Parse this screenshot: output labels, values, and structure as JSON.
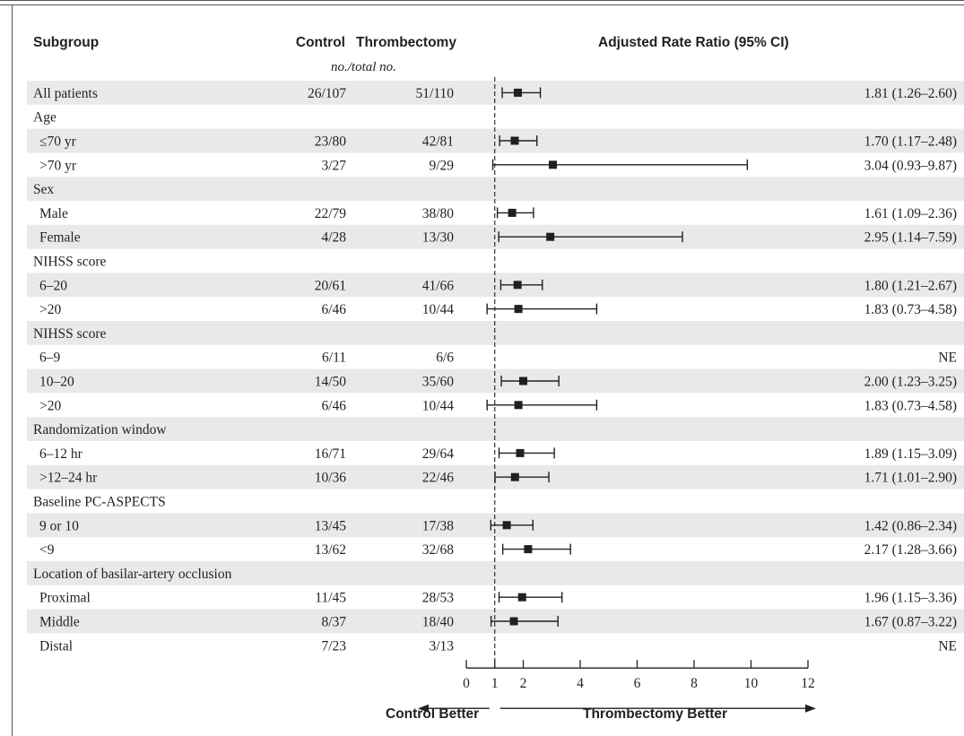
{
  "headers": {
    "subgroup": "Subgroup",
    "control": "Control",
    "thrombectomy": "Thrombectomy",
    "subheader": "no./total no.",
    "ratio": "Adjusted Rate Ratio (95% CI)"
  },
  "arrows": {
    "left": "Control Better",
    "right": "Thrombectomy Better"
  },
  "colors": {
    "band": "#e8e9eb",
    "ink": "#231f20"
  },
  "chart_data": {
    "type": "forest",
    "xlabel": "Adjusted Rate Ratio (95% CI)",
    "xlim": [
      0,
      12
    ],
    "ticks": [
      0,
      1,
      2,
      4,
      6,
      8,
      10,
      12
    ],
    "reference_line": 1,
    "rows": [
      {
        "label": "All patients",
        "indent": false,
        "header": false,
        "control": "26/107",
        "thrombectomy": "51/110",
        "est": 1.81,
        "lo": 1.26,
        "hi": 2.6,
        "text": "1.81 (1.26–2.60)"
      },
      {
        "label": "Age",
        "indent": false,
        "header": true
      },
      {
        "label": "≤70 yr",
        "indent": true,
        "header": false,
        "control": "23/80",
        "thrombectomy": "42/81",
        "est": 1.7,
        "lo": 1.17,
        "hi": 2.48,
        "text": "1.70 (1.17–2.48)"
      },
      {
        "label": ">70 yr",
        "indent": true,
        "header": false,
        "control": "3/27",
        "thrombectomy": "9/29",
        "est": 3.04,
        "lo": 0.93,
        "hi": 9.87,
        "text": "3.04 (0.93–9.87)"
      },
      {
        "label": "Sex",
        "indent": false,
        "header": true
      },
      {
        "label": "Male",
        "indent": true,
        "header": false,
        "control": "22/79",
        "thrombectomy": "38/80",
        "est": 1.61,
        "lo": 1.09,
        "hi": 2.36,
        "text": "1.61 (1.09–2.36)"
      },
      {
        "label": "Female",
        "indent": true,
        "header": false,
        "control": "4/28",
        "thrombectomy": "13/30",
        "est": 2.95,
        "lo": 1.14,
        "hi": 7.59,
        "text": "2.95 (1.14–7.59)"
      },
      {
        "label": "NIHSS score",
        "indent": false,
        "header": true
      },
      {
        "label": "6–20",
        "indent": true,
        "header": false,
        "control": "20/61",
        "thrombectomy": "41/66",
        "est": 1.8,
        "lo": 1.21,
        "hi": 2.67,
        "text": "1.80 (1.21–2.67)"
      },
      {
        "label": ">20",
        "indent": true,
        "header": false,
        "control": "6/46",
        "thrombectomy": "10/44",
        "est": 1.83,
        "lo": 0.73,
        "hi": 4.58,
        "text": "1.83 (0.73–4.58)"
      },
      {
        "label": "NIHSS score",
        "indent": false,
        "header": true
      },
      {
        "label": "6–9",
        "indent": true,
        "header": false,
        "control": "6/11",
        "thrombectomy": "6/6",
        "est": null,
        "lo": null,
        "hi": null,
        "text": "NE"
      },
      {
        "label": "10–20",
        "indent": true,
        "header": false,
        "control": "14/50",
        "thrombectomy": "35/60",
        "est": 2.0,
        "lo": 1.23,
        "hi": 3.25,
        "text": "2.00 (1.23–3.25)"
      },
      {
        "label": ">20",
        "indent": true,
        "header": false,
        "control": "6/46",
        "thrombectomy": "10/44",
        "est": 1.83,
        "lo": 0.73,
        "hi": 4.58,
        "text": "1.83 (0.73–4.58)"
      },
      {
        "label": "Randomization window",
        "indent": false,
        "header": true
      },
      {
        "label": "6–12 hr",
        "indent": true,
        "header": false,
        "control": "16/71",
        "thrombectomy": "29/64",
        "est": 1.89,
        "lo": 1.15,
        "hi": 3.09,
        "text": "1.89 (1.15–3.09)"
      },
      {
        "label": ">12–24 hr",
        "indent": true,
        "header": false,
        "control": "10/36",
        "thrombectomy": "22/46",
        "est": 1.71,
        "lo": 1.01,
        "hi": 2.9,
        "text": "1.71 (1.01–2.90)"
      },
      {
        "label": "Baseline PC-ASPECTS",
        "indent": false,
        "header": true
      },
      {
        "label": "9 or 10",
        "indent": true,
        "header": false,
        "control": "13/45",
        "thrombectomy": "17/38",
        "est": 1.42,
        "lo": 0.86,
        "hi": 2.34,
        "text": "1.42 (0.86–2.34)"
      },
      {
        "label": "<9",
        "indent": true,
        "header": false,
        "control": "13/62",
        "thrombectomy": "32/68",
        "est": 2.17,
        "lo": 1.28,
        "hi": 3.66,
        "text": "2.17 (1.28–3.66)"
      },
      {
        "label": "Location of basilar-artery occlusion",
        "indent": false,
        "header": true
      },
      {
        "label": "Proximal",
        "indent": true,
        "header": false,
        "control": "11/45",
        "thrombectomy": "28/53",
        "est": 1.96,
        "lo": 1.15,
        "hi": 3.36,
        "text": "1.96 (1.15–3.36)"
      },
      {
        "label": "Middle",
        "indent": true,
        "header": false,
        "control": "8/37",
        "thrombectomy": "18/40",
        "est": 1.67,
        "lo": 0.87,
        "hi": 3.22,
        "text": "1.67 (0.87–3.22)"
      },
      {
        "label": "Distal",
        "indent": true,
        "header": false,
        "control": "7/23",
        "thrombectomy": "3/13",
        "est": null,
        "lo": null,
        "hi": null,
        "text": "NE"
      }
    ]
  }
}
